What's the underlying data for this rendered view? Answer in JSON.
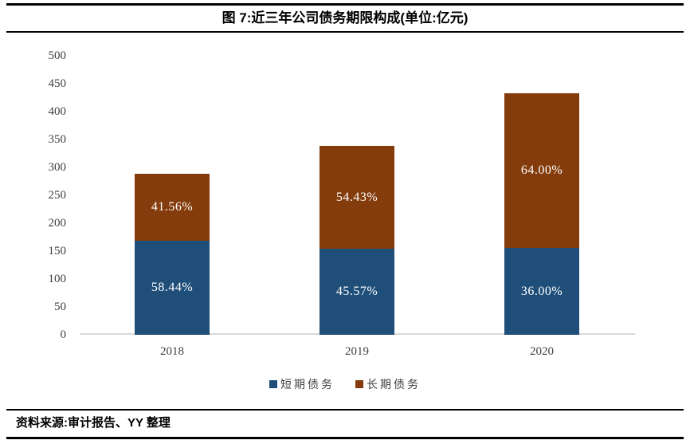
{
  "header": {
    "title": "图 7:近三年公司债务期限构成(单位:亿元)"
  },
  "footer": {
    "source": "资料来源:审计报告、YY 整理"
  },
  "colors": {
    "short_term": "#1F4E79",
    "long_term": "#843C0C",
    "axis_line": "#D9D9D9",
    "axis_text": "#404040",
    "bar_label_text": "#FFFFFF",
    "rule": "#000000"
  },
  "legend": {
    "items": [
      {
        "label": "短期债务",
        "color": "#1F4E79"
      },
      {
        "label": "长期债务",
        "color": "#843C0C"
      }
    ]
  },
  "chart_data": {
    "type": "bar",
    "stacked": true,
    "title": "图 7:近三年公司债务期限构成(单位:亿元)",
    "unit": "亿元",
    "categories": [
      "2018",
      "2019",
      "2020"
    ],
    "series": [
      {
        "name": "短期债务",
        "color": "#1F4E79",
        "values": [
          168.4,
          154.5,
          155.9
        ],
        "percent_labels": [
          "58.44%",
          "45.57%",
          "36.00%"
        ]
      },
      {
        "name": "长期债务",
        "color": "#843C0C",
        "values": [
          119.8,
          184.5,
          277.1
        ],
        "percent_labels": [
          "41.56%",
          "54.43%",
          "64.00%"
        ]
      }
    ],
    "totals": [
      288.2,
      339.0,
      433.0
    ],
    "ylim": [
      0,
      500
    ],
    "ytick_step": 50,
    "legend_position": "bottom",
    "grid": false
  }
}
